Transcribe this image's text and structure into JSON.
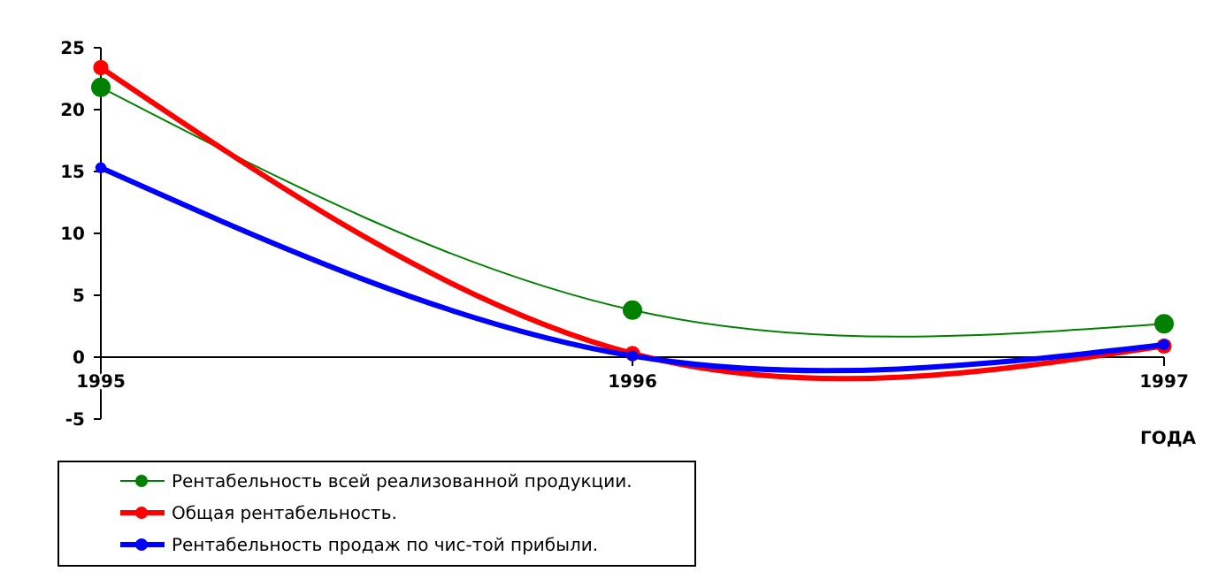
{
  "chart_data": {
    "type": "line",
    "xlabel": "ГОДА",
    "x": [
      1995,
      1996,
      1997
    ],
    "xlim": [
      1995,
      1997
    ],
    "xticks": [
      1995,
      1996,
      1997
    ],
    "ylim": [
      -5,
      25
    ],
    "yticks": [
      -5,
      0,
      5,
      10,
      15,
      20,
      25
    ],
    "marker": "circle",
    "legend": "bottom left",
    "grid": false,
    "series": [
      {
        "name": "Рентабельность всей реализованной продукции.",
        "color": "#008000",
        "values": [
          21.8,
          3.8,
          2.7
        ]
      },
      {
        "name": "Общая рентабельность.",
        "color": "#ff0000",
        "values": [
          23.4,
          0.3,
          0.9
        ]
      },
      {
        "name": "Рентабельность продаж по чис-той прибыли.",
        "color": "#0000ff",
        "values": [
          15.3,
          0.1,
          1.0
        ]
      }
    ]
  }
}
